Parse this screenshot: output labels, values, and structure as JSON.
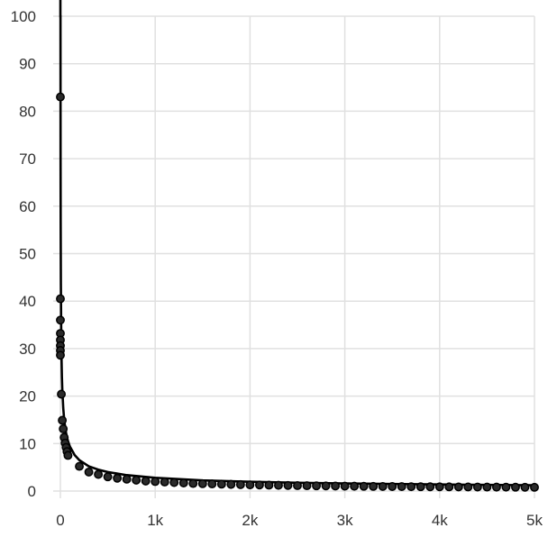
{
  "chart_data": {
    "type": "scatter",
    "title": "",
    "xlabel": "",
    "ylabel": "",
    "xlim": [
      0,
      5000
    ],
    "ylim": [
      0,
      100
    ],
    "grid": true,
    "legend": "none",
    "x_ticks": [
      {
        "value": 0,
        "label": "0"
      },
      {
        "value": 1000,
        "label": "1k"
      },
      {
        "value": 2000,
        "label": "2k"
      },
      {
        "value": 3000,
        "label": "3k"
      },
      {
        "value": 4000,
        "label": "4k"
      },
      {
        "value": 5000,
        "label": "5k"
      }
    ],
    "y_ticks": [
      {
        "value": 0,
        "label": "0"
      },
      {
        "value": 10,
        "label": "10"
      },
      {
        "value": 20,
        "label": "20"
      },
      {
        "value": 30,
        "label": "30"
      },
      {
        "value": 40,
        "label": "40"
      },
      {
        "value": 50,
        "label": "50"
      },
      {
        "value": 60,
        "label": "60"
      },
      {
        "value": 70,
        "label": "70"
      },
      {
        "value": 80,
        "label": "80"
      },
      {
        "value": 90,
        "label": "90"
      },
      {
        "value": 100,
        "label": "100"
      }
    ],
    "series": [
      {
        "type": "scatter",
        "color": "#2a2a2a",
        "points": [
          [
            0,
            83.0
          ],
          [
            0,
            40.5
          ],
          [
            0,
            36.0
          ],
          [
            0,
            33.2
          ],
          [
            0,
            31.8
          ],
          [
            0,
            30.6
          ],
          [
            0,
            29.6
          ],
          [
            0,
            28.6
          ],
          [
            10,
            20.4
          ],
          [
            20,
            14.9
          ],
          [
            30,
            13.1
          ],
          [
            40,
            11.3
          ],
          [
            50,
            10.1
          ],
          [
            60,
            9.2
          ],
          [
            70,
            8.3
          ],
          [
            80,
            7.5
          ],
          [
            200,
            5.2
          ],
          [
            300,
            4.0
          ],
          [
            400,
            3.5
          ],
          [
            500,
            3.0
          ],
          [
            600,
            2.7
          ],
          [
            700,
            2.5
          ],
          [
            800,
            2.3
          ],
          [
            900,
            2.1
          ],
          [
            1000,
            2.0
          ],
          [
            1100,
            1.9
          ],
          [
            1200,
            1.8
          ],
          [
            1300,
            1.7
          ],
          [
            1400,
            1.6
          ],
          [
            1500,
            1.55
          ],
          [
            1600,
            1.5
          ],
          [
            1700,
            1.45
          ],
          [
            1800,
            1.4
          ],
          [
            1900,
            1.35
          ],
          [
            2000,
            1.3
          ],
          [
            2100,
            1.27
          ],
          [
            2200,
            1.24
          ],
          [
            2300,
            1.21
          ],
          [
            2400,
            1.18
          ],
          [
            2500,
            1.15
          ],
          [
            2600,
            1.12
          ],
          [
            2700,
            1.1
          ],
          [
            2800,
            1.08
          ],
          [
            2900,
            1.06
          ],
          [
            3000,
            1.04
          ],
          [
            3100,
            1.02
          ],
          [
            3200,
            1.0
          ],
          [
            3300,
            0.98
          ],
          [
            3400,
            0.97
          ],
          [
            3500,
            0.95
          ],
          [
            3600,
            0.94
          ],
          [
            3700,
            0.92
          ],
          [
            3800,
            0.91
          ],
          [
            3900,
            0.9
          ],
          [
            4000,
            0.89
          ],
          [
            4100,
            0.88
          ],
          [
            4200,
            0.87
          ],
          [
            4300,
            0.86
          ],
          [
            4400,
            0.85
          ],
          [
            4500,
            0.84
          ],
          [
            4600,
            0.83
          ],
          [
            4700,
            0.82
          ],
          [
            4800,
            0.81
          ],
          [
            4900,
            0.8
          ],
          [
            5000,
            0.79
          ]
        ]
      },
      {
        "type": "line",
        "color": "#000000",
        "points": [
          [
            0,
            100
          ],
          [
            1,
            100
          ],
          [
            2,
            70
          ],
          [
            3,
            57
          ],
          [
            5,
            44
          ],
          [
            8,
            35
          ],
          [
            12,
            28
          ],
          [
            16,
            24
          ],
          [
            20,
            21.5
          ],
          [
            30,
            17.5
          ],
          [
            40,
            15.0
          ],
          [
            50,
            13.5
          ],
          [
            60,
            12.2
          ],
          [
            80,
            10.5
          ],
          [
            100,
            9.4
          ],
          [
            150,
            7.6
          ],
          [
            200,
            6.5
          ],
          [
            300,
            5.2
          ],
          [
            400,
            4.5
          ],
          [
            500,
            4.0
          ],
          [
            700,
            3.35
          ],
          [
            1000,
            2.8
          ],
          [
            1500,
            2.25
          ],
          [
            2000,
            1.95
          ],
          [
            2500,
            1.75
          ],
          [
            3000,
            1.6
          ],
          [
            3500,
            1.48
          ],
          [
            4000,
            1.38
          ],
          [
            4500,
            1.3
          ],
          [
            5000,
            1.23
          ]
        ]
      }
    ]
  }
}
